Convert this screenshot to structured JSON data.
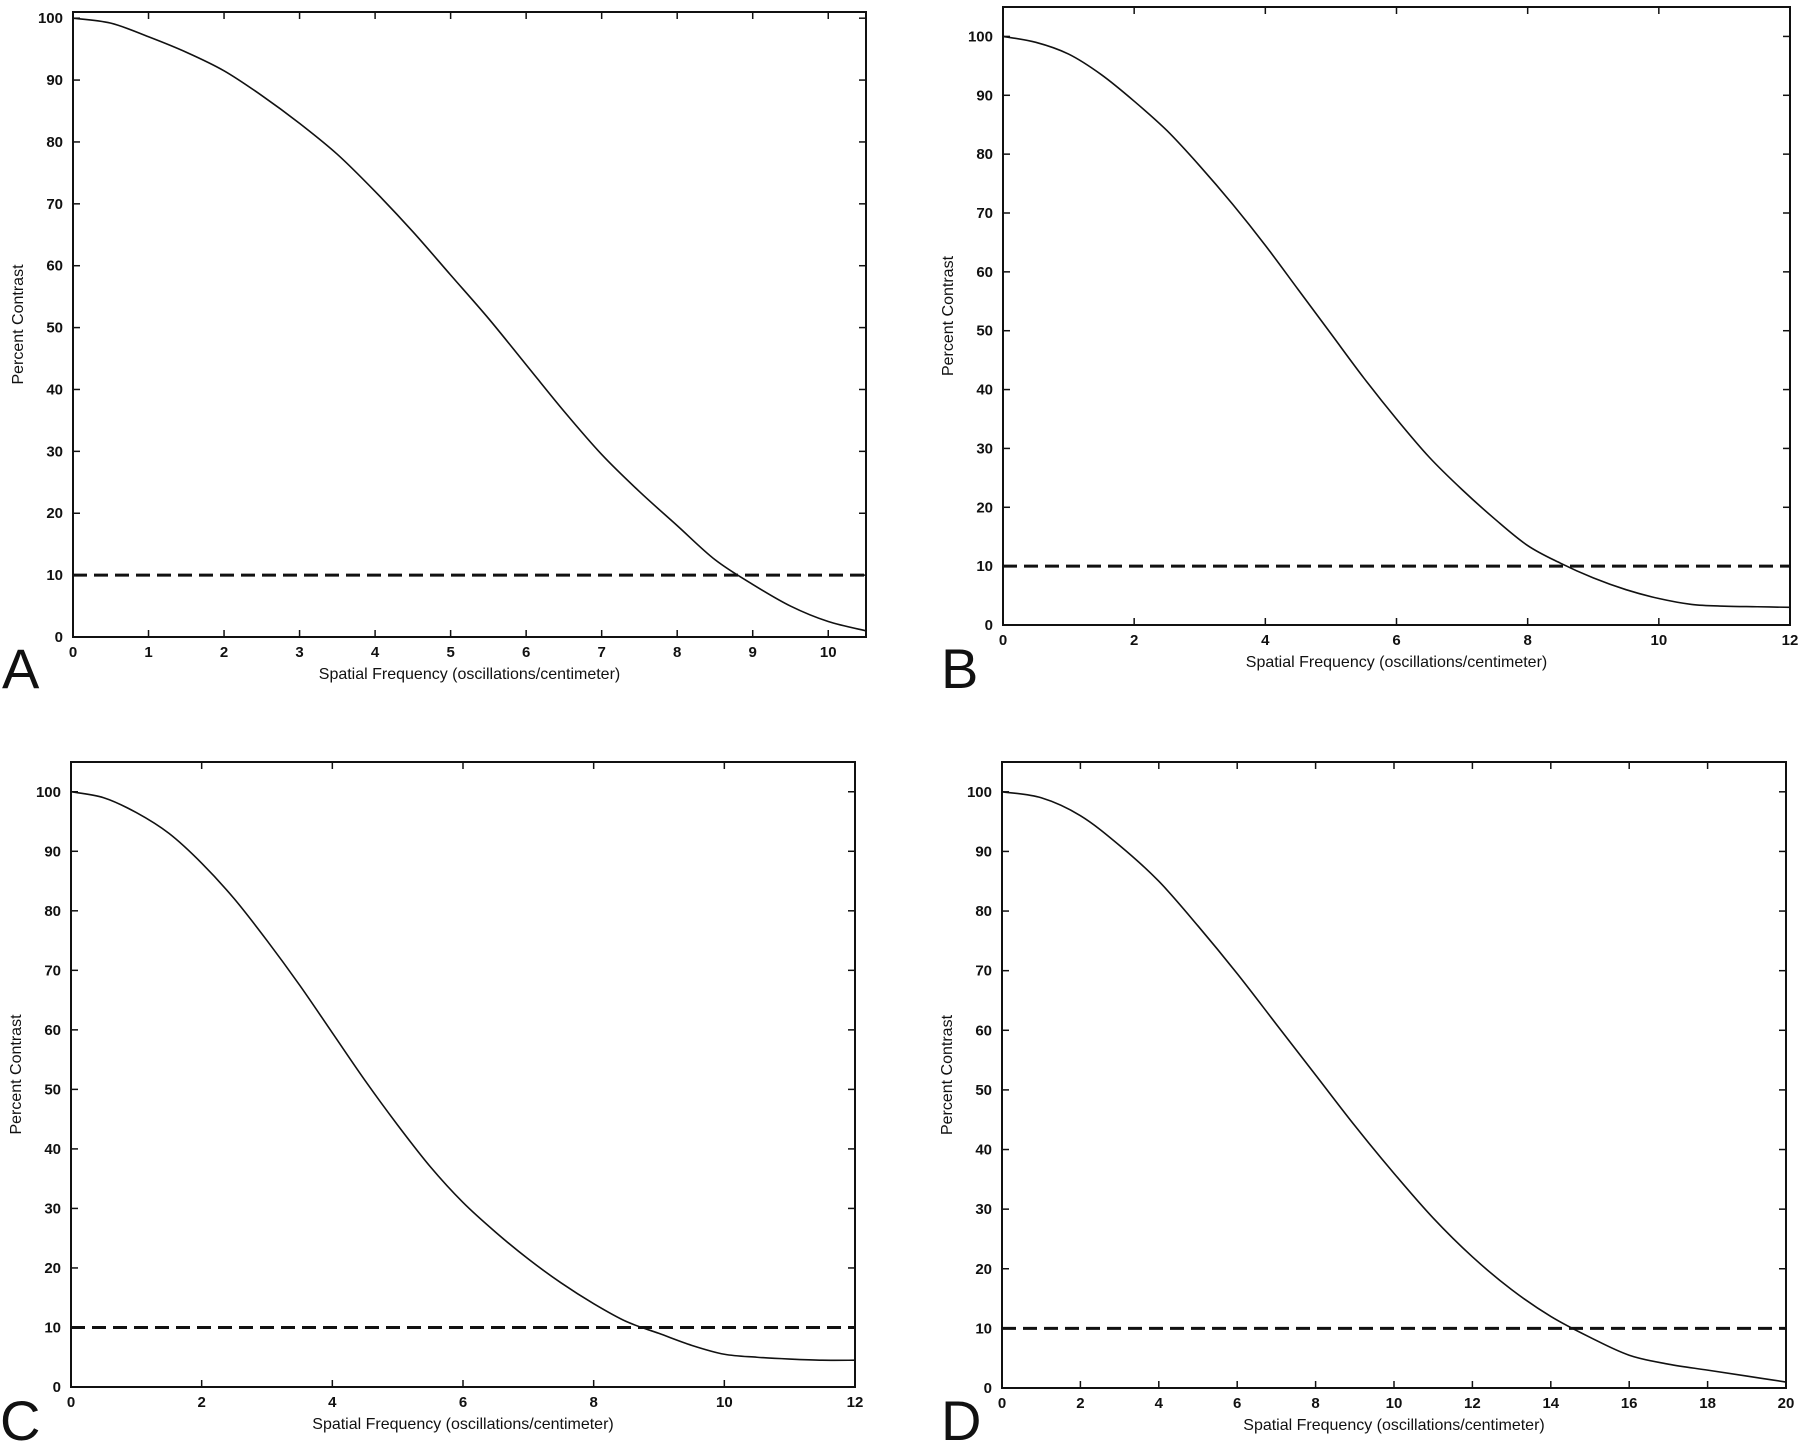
{
  "chart_data": [
    {
      "type": "line",
      "panel_label": "A",
      "xlabel": "Spatial Frequency (oscillations/centimeter)",
      "ylabel": "Percent Contrast",
      "xlim": [
        0,
        10.5
      ],
      "ylim": [
        0,
        101
      ],
      "xticks": [
        0,
        1,
        2,
        3,
        4,
        5,
        6,
        7,
        8,
        9,
        10
      ],
      "yticks": [
        0,
        10,
        20,
        30,
        40,
        50,
        60,
        70,
        80,
        90,
        100
      ],
      "grid": false,
      "series": [
        {
          "style": "solid",
          "x": [
            0,
            0.5,
            1,
            1.5,
            2,
            2.5,
            3,
            3.5,
            4,
            4.5,
            5,
            5.5,
            6,
            6.5,
            7,
            7.5,
            8,
            8.5,
            9,
            9.5,
            10,
            10.5
          ],
          "y": [
            100,
            99.2,
            97,
            94.5,
            91.5,
            87.5,
            83,
            78,
            72,
            65.5,
            58.5,
            51.5,
            44,
            36.5,
            29.5,
            23.5,
            18,
            12.5,
            8.5,
            5,
            2.5,
            1
          ]
        },
        {
          "style": "dashed",
          "x": [
            0,
            10.5
          ],
          "y": [
            10,
            10
          ]
        }
      ]
    },
    {
      "type": "line",
      "panel_label": "B",
      "xlabel": "Spatial Frequency (oscillations/centimeter)",
      "ylabel": "Percent Contrast",
      "xlim": [
        0,
        12
      ],
      "ylim": [
        0,
        105
      ],
      "xticks": [
        0,
        2,
        4,
        6,
        8,
        10,
        12
      ],
      "yticks": [
        0,
        10,
        20,
        30,
        40,
        50,
        60,
        70,
        80,
        90,
        100
      ],
      "grid": false,
      "series": [
        {
          "style": "solid",
          "x": [
            0,
            0.5,
            1,
            1.5,
            2,
            2.5,
            3,
            3.5,
            4,
            4.5,
            5,
            5.5,
            6,
            6.5,
            7,
            7.5,
            8,
            8.5,
            9,
            9.5,
            10,
            10.5,
            11,
            11.5,
            12
          ],
          "y": [
            100,
            99,
            97,
            93.5,
            89,
            84,
            78,
            71.5,
            64.5,
            57,
            49.5,
            42,
            35,
            28.5,
            23,
            18,
            13.5,
            10.5,
            8,
            6,
            4.5,
            3.5,
            3.2,
            3.1,
            3
          ]
        },
        {
          "style": "dashed",
          "x": [
            0,
            12
          ],
          "y": [
            10,
            10
          ]
        }
      ]
    },
    {
      "type": "line",
      "panel_label": "C",
      "xlabel": "Spatial Frequency (oscillations/centimeter)",
      "ylabel": "Percent Contrast",
      "xlim": [
        0,
        12
      ],
      "ylim": [
        0,
        105
      ],
      "xticks": [
        0,
        2,
        4,
        6,
        8,
        10,
        12
      ],
      "yticks": [
        0,
        10,
        20,
        30,
        40,
        50,
        60,
        70,
        80,
        90,
        100
      ],
      "grid": false,
      "series": [
        {
          "style": "solid",
          "x": [
            0,
            0.5,
            1,
            1.5,
            2,
            2.5,
            3,
            3.5,
            4,
            4.5,
            5,
            5.5,
            6,
            6.5,
            7,
            7.5,
            8,
            8.5,
            9,
            9.5,
            10,
            10.5,
            11,
            11.5,
            12
          ],
          "y": [
            100,
            99,
            96.5,
            93,
            88,
            82,
            75,
            67.5,
            59.5,
            51.5,
            44,
            37,
            31,
            26,
            21.5,
            17.5,
            14,
            11,
            9,
            7,
            5.5,
            5,
            4.7,
            4.5,
            4.5
          ]
        },
        {
          "style": "dashed",
          "x": [
            0,
            12
          ],
          "y": [
            10,
            10
          ]
        }
      ]
    },
    {
      "type": "line",
      "panel_label": "D",
      "xlabel": "Spatial Frequency (oscillations/centimeter)",
      "ylabel": "Percent Contrast",
      "xlim": [
        0,
        20
      ],
      "ylim": [
        0,
        105
      ],
      "xticks": [
        0,
        2,
        4,
        6,
        8,
        10,
        12,
        14,
        16,
        18,
        20
      ],
      "yticks": [
        0,
        10,
        20,
        30,
        40,
        50,
        60,
        70,
        80,
        90,
        100
      ],
      "grid": false,
      "series": [
        {
          "style": "solid",
          "x": [
            0,
            1,
            2,
            3,
            4,
            5,
            6,
            7,
            8,
            9,
            10,
            11,
            12,
            13,
            14,
            15,
            16,
            17,
            18,
            19,
            20
          ],
          "y": [
            100,
            99,
            96,
            91,
            85,
            77.5,
            69.5,
            61,
            52.5,
            44,
            36,
            28.5,
            22,
            16.5,
            12,
            8.5,
            5.5,
            4,
            3,
            2,
            1
          ]
        },
        {
          "style": "dashed",
          "x": [
            0,
            20
          ],
          "y": [
            10,
            10
          ]
        }
      ]
    }
  ]
}
